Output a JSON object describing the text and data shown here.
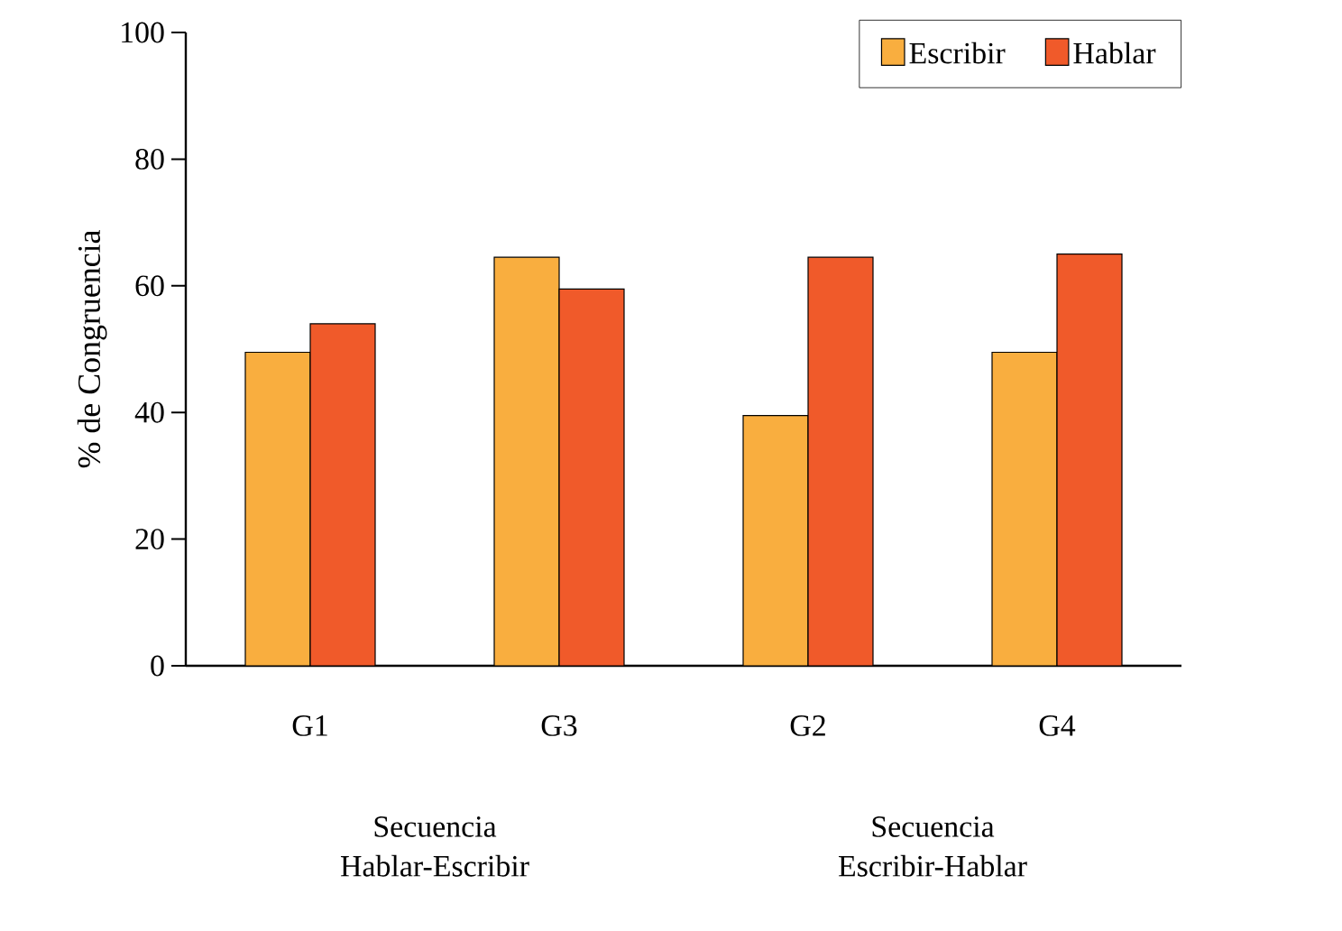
{
  "chart_data": {
    "type": "bar",
    "ylabel": "% de Congruencia",
    "categories": [
      "G1",
      "G3",
      "G2",
      "G4"
    ],
    "series": [
      {
        "name": "Escribir",
        "color": "#f9ae3f",
        "values": [
          49.5,
          64.5,
          39.5,
          49.5
        ]
      },
      {
        "name": "Hablar",
        "color": "#f05a2a",
        "values": [
          54,
          59.5,
          64.5,
          65
        ]
      }
    ],
    "ylim": [
      0,
      100
    ],
    "yticks": [
      0,
      20,
      40,
      60,
      80,
      100
    ],
    "annotations": [
      "Secuencia Hablar-Escribir",
      "Secuencia Escribir-Hablar"
    ],
    "legend": "top right",
    "grid": false
  }
}
